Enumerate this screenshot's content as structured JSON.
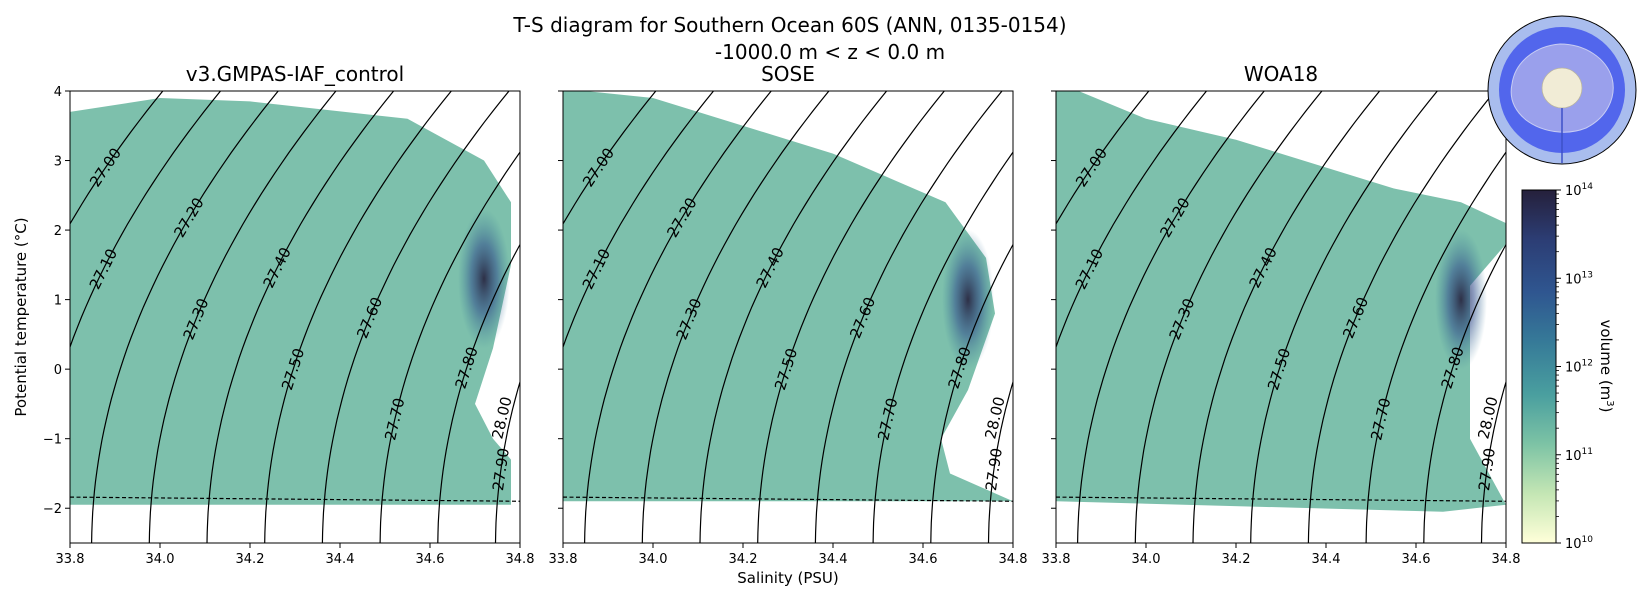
{
  "chart_data": {
    "type": "heatmap",
    "title_line1": "T-S diagram for Southern Ocean 60S (ANN, 0135-0154)",
    "title_line2": "-1000.0 m < z < 0.0 m",
    "xlabel": "Salinity (PSU)",
    "ylabel": "Potential temperature (°C)",
    "xlim": [
      33.8,
      34.8
    ],
    "ylim": [
      -2.5,
      4.0
    ],
    "xticks": [
      "33.8",
      "34.0",
      "34.2",
      "34.4",
      "34.6",
      "34.8"
    ],
    "yticks": [
      "−2",
      "−1",
      "0",
      "1",
      "2",
      "3",
      "4"
    ],
    "freezing_line": {
      "style": "dashed",
      "points": [
        [
          33.8,
          -1.84
        ],
        [
          34.8,
          -1.9
        ]
      ]
    },
    "density_levels": [
      "27.00",
      "27.10",
      "27.20",
      "27.30",
      "27.40",
      "27.50",
      "27.60",
      "27.70",
      "27.80",
      "27.90",
      "28.00"
    ],
    "colorbar": {
      "label": "volume (m³)",
      "label_text": "volume (m",
      "label_sup": "3",
      "label_close": ")",
      "scale": "log",
      "range": [
        10000000000.0,
        100000000000000.0
      ],
      "ticks": [
        {
          "base": "10",
          "exp": "10"
        },
        {
          "base": "10",
          "exp": "11"
        },
        {
          "base": "10",
          "exp": "12"
        },
        {
          "base": "10",
          "exp": "13"
        },
        {
          "base": "10",
          "exp": "14"
        }
      ],
      "colormap": [
        "#ffffd9",
        "#c4e6b4",
        "#7dc3a5",
        "#4a9f9f",
        "#367a98",
        "#2f5690",
        "#2c3d74",
        "#25203b"
      ]
    },
    "panels": [
      {
        "title": "v3.GMPAS-IAF_control",
        "volume_region": [
          [
            33.8,
            -1.95
          ],
          [
            34.78,
            -1.95
          ],
          [
            34.78,
            -1.3
          ],
          [
            34.74,
            -1.0
          ],
          [
            34.7,
            -0.5
          ],
          [
            34.74,
            0.3
          ],
          [
            34.78,
            1.5
          ],
          [
            34.78,
            2.4
          ],
          [
            34.72,
            3.0
          ],
          [
            34.55,
            3.6
          ],
          [
            34.2,
            3.85
          ],
          [
            34.0,
            3.9
          ],
          [
            33.8,
            3.7
          ]
        ],
        "dense_core": [
          34.72,
          1.3
        ]
      },
      {
        "title": "SOSE",
        "volume_region": [
          [
            33.8,
            -1.9
          ],
          [
            34.8,
            -1.9
          ],
          [
            34.66,
            -1.5
          ],
          [
            34.64,
            -1.0
          ],
          [
            34.7,
            -0.3
          ],
          [
            34.76,
            0.8
          ],
          [
            34.74,
            1.6
          ],
          [
            34.65,
            2.4
          ],
          [
            34.4,
            3.1
          ],
          [
            34.0,
            3.9
          ],
          [
            33.85,
            4.0
          ],
          [
            33.8,
            4.0
          ]
        ],
        "dense_core": [
          34.7,
          1.0
        ]
      },
      {
        "title": "WOA18",
        "volume_region": [
          [
            33.8,
            -1.9
          ],
          [
            34.66,
            -2.05
          ],
          [
            34.8,
            -1.95
          ],
          [
            34.72,
            -1.0
          ],
          [
            34.72,
            0.2
          ],
          [
            34.72,
            1.2
          ],
          [
            34.8,
            1.8
          ],
          [
            34.8,
            2.1
          ],
          [
            34.7,
            2.4
          ],
          [
            34.55,
            2.6
          ],
          [
            34.2,
            3.3
          ],
          [
            34.0,
            3.6
          ],
          [
            33.85,
            4.0
          ],
          [
            33.8,
            4.0
          ]
        ],
        "dense_core": [
          34.7,
          1.0
        ]
      }
    ]
  },
  "inset": {
    "name": "antarctic-region-map"
  }
}
